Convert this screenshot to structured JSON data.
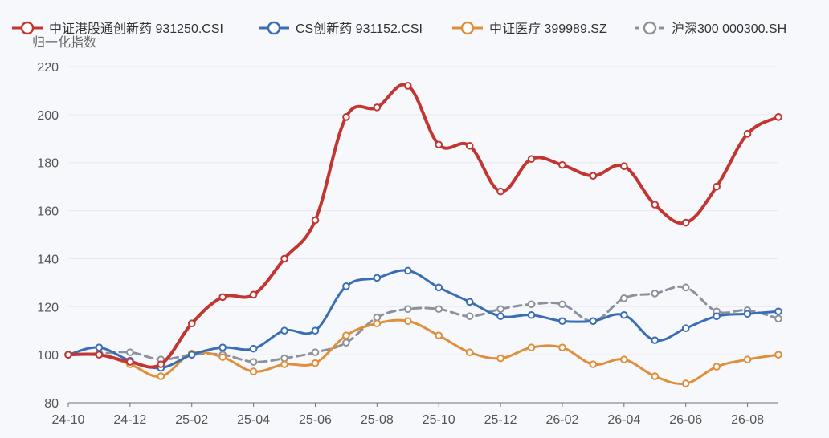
{
  "chart_data": {
    "type": "line",
    "title": "",
    "ylabel": "归一化指数",
    "xlabel": "",
    "ylim": [
      80,
      220
    ],
    "y_ticks": [
      80,
      100,
      120,
      140,
      160,
      180,
      200,
      220
    ],
    "x_tick_labels": [
      "24-10",
      "24-12",
      "25-02",
      "25-04",
      "25-06",
      "25-08",
      "25-10",
      "25-12",
      "26-02",
      "26-04",
      "26-06",
      "26-08"
    ],
    "x": [
      "24-10",
      "24-11",
      "24-12",
      "25-01",
      "25-02",
      "25-03",
      "25-04",
      "25-05",
      "25-06",
      "25-07",
      "25-08",
      "25-09",
      "25-10",
      "25-11",
      "25-12",
      "26-01",
      "26-02",
      "26-03",
      "26-04",
      "26-05",
      "26-06",
      "26-07",
      "26-08",
      "26-09"
    ],
    "grid": true,
    "legend_position": "top",
    "series": [
      {
        "name": "中证港股通创新药 931250.CSI",
        "color": "#c23531",
        "dashed": false,
        "width": 4,
        "values": [
          100,
          100,
          97,
          96,
          113,
          124,
          125,
          140,
          156,
          199,
          203,
          212,
          187.5,
          187,
          168,
          181.5,
          179,
          174.5,
          178.5,
          162.5,
          155,
          170,
          192,
          199
        ]
      },
      {
        "name": "CS创新药 931152.CSI",
        "color": "#3a6db5",
        "dashed": false,
        "width": 3,
        "values": [
          100,
          103,
          97.5,
          94.5,
          100,
          103,
          102.5,
          110,
          110,
          128.5,
          132,
          135,
          128,
          122,
          116,
          116.5,
          114,
          114,
          116.5,
          106,
          111,
          116,
          117,
          118
        ]
      },
      {
        "name": "中证医疗 399989.SZ",
        "color": "#e08e3a",
        "dashed": false,
        "width": 3,
        "values": [
          100,
          100,
          96,
          91,
          100.5,
          99,
          93,
          96,
          96.5,
          108,
          113,
          114,
          108,
          101,
          98.5,
          103,
          103,
          96,
          98,
          91,
          88,
          95,
          98,
          100
        ]
      },
      {
        "name": "沪深300 000300.SH",
        "color": "#8c929c",
        "dashed": true,
        "width": 3,
        "values": [
          100,
          100.5,
          101,
          98,
          100,
          100,
          97,
          98.5,
          101,
          105,
          115.5,
          119,
          119,
          116,
          119,
          121,
          121,
          114,
          123.5,
          125.5,
          128,
          118,
          118.5,
          115
        ]
      }
    ]
  }
}
